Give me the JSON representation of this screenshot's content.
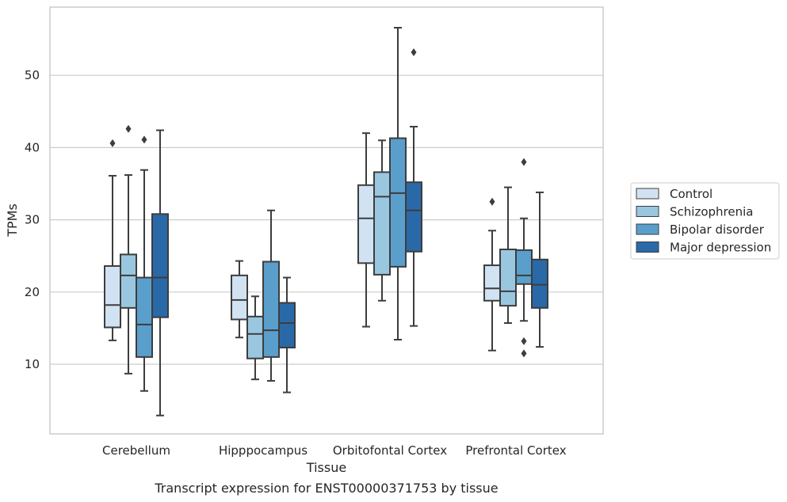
{
  "chart_data": {
    "type": "box",
    "caption": "Transcript expression for ENST00000371753 by tissue",
    "xlabel": "Tissue",
    "ylabel": "TPMs",
    "ylim": [
      0.5,
      59.5
    ],
    "yticks": [
      10,
      20,
      30,
      40,
      50
    ],
    "grid": "horizontal",
    "legend_position": "right",
    "categories": [
      "Cerebellum",
      "Hipppocampus",
      "Orbitofontal Cortex",
      "Prefrontal Cortex"
    ],
    "series": [
      {
        "name": "Control",
        "color": "#d1e2f2",
        "boxes": [
          {
            "whisker_low": 13.3,
            "q1": 15.1,
            "median": 18.2,
            "q3": 23.6,
            "whisker_high": 36.1,
            "outliers": [
              40.6
            ]
          },
          {
            "whisker_low": 13.7,
            "q1": 16.2,
            "median": 18.9,
            "q3": 22.3,
            "whisker_high": 24.3,
            "outliers": []
          },
          {
            "whisker_low": 15.2,
            "q1": 24.0,
            "median": 30.2,
            "q3": 34.8,
            "whisker_high": 42.0,
            "outliers": []
          },
          {
            "whisker_low": 11.9,
            "q1": 18.8,
            "median": 20.5,
            "q3": 23.7,
            "whisker_high": 28.5,
            "outliers": [
              32.5
            ]
          }
        ]
      },
      {
        "name": "Schizophrenia",
        "color": "#9ac7e0",
        "boxes": [
          {
            "whisker_low": 8.7,
            "q1": 17.8,
            "median": 22.3,
            "q3": 25.2,
            "whisker_high": 36.2,
            "outliers": [
              42.6
            ]
          },
          {
            "whisker_low": 7.9,
            "q1": 10.8,
            "median": 14.2,
            "q3": 16.6,
            "whisker_high": 19.4,
            "outliers": []
          },
          {
            "whisker_low": 18.8,
            "q1": 22.4,
            "median": 33.2,
            "q3": 36.6,
            "whisker_high": 41.0,
            "outliers": []
          },
          {
            "whisker_low": 15.7,
            "q1": 18.1,
            "median": 20.1,
            "q3": 25.9,
            "whisker_high": 34.5,
            "outliers": []
          }
        ]
      },
      {
        "name": "Bipolar disorder",
        "color": "#5a9fcc",
        "boxes": [
          {
            "whisker_low": 6.3,
            "q1": 11.0,
            "median": 15.5,
            "q3": 22.0,
            "whisker_high": 36.9,
            "outliers": [
              41.1
            ]
          },
          {
            "whisker_low": 7.7,
            "q1": 11.0,
            "median": 14.7,
            "q3": 24.2,
            "whisker_high": 31.3,
            "outliers": []
          },
          {
            "whisker_low": 13.4,
            "q1": 23.5,
            "median": 33.7,
            "q3": 41.3,
            "whisker_high": 56.6,
            "outliers": []
          },
          {
            "whisker_low": 16.0,
            "q1": 21.1,
            "median": 22.3,
            "q3": 25.8,
            "whisker_high": 30.2,
            "outliers": [
              38.0,
              13.2,
              11.5
            ]
          }
        ]
      },
      {
        "name": "Major depression",
        "color": "#2a69a8",
        "boxes": [
          {
            "whisker_low": 2.9,
            "q1": 16.5,
            "median": 22.0,
            "q3": 30.8,
            "whisker_high": 42.4,
            "outliers": []
          },
          {
            "whisker_low": 6.1,
            "q1": 12.3,
            "median": 15.7,
            "q3": 18.5,
            "whisker_high": 22.0,
            "outliers": []
          },
          {
            "whisker_low": 15.3,
            "q1": 25.6,
            "median": 31.3,
            "q3": 35.2,
            "whisker_high": 42.9,
            "outliers": [
              53.2
            ]
          },
          {
            "whisker_low": 12.4,
            "q1": 17.8,
            "median": 21.0,
            "q3": 24.5,
            "whisker_high": 33.8,
            "outliers": []
          }
        ]
      }
    ]
  }
}
